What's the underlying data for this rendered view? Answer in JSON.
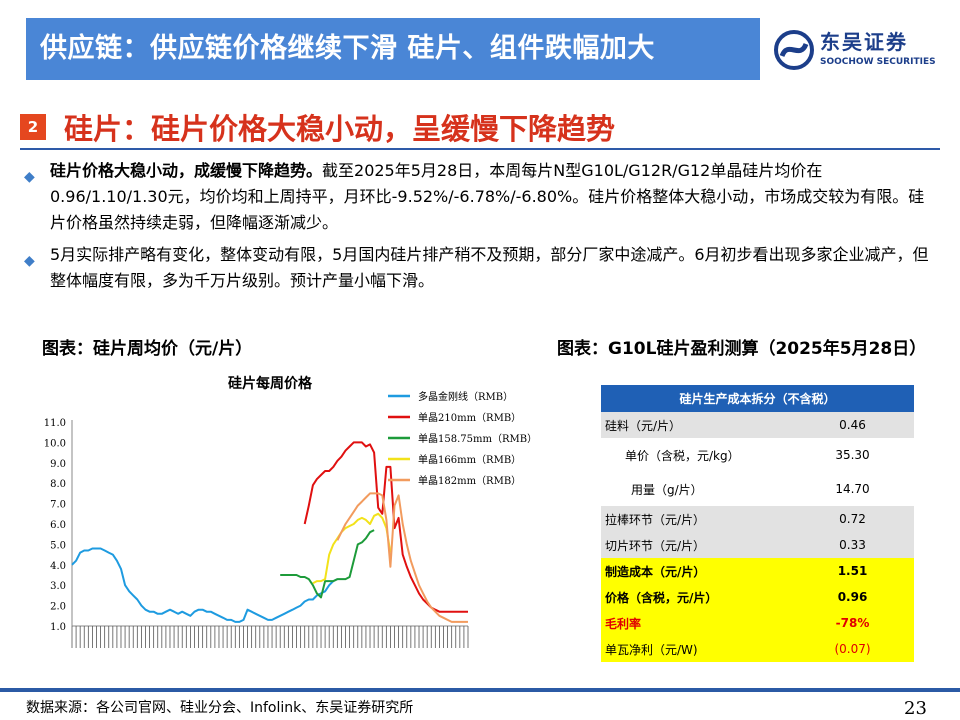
{
  "header": {
    "title": "供应链：供应链价格继续下滑 硅片、组件跌幅加大",
    "logo_cn": "东吴证券",
    "logo_en": "SOOCHOW SECURITIES"
  },
  "section": {
    "number": "2",
    "title": "硅片：硅片价格大稳小动，呈缓慢下降趋势"
  },
  "bullets": [
    {
      "bold": "硅片价格大稳小动，成缓慢下降趋势。",
      "text": "截至2025年5月28日，本周每片N型G10L/G12R/G12单晶硅片均价在0.96/1.10/1.30元，均价均和上周持平，月环比-9.52%/-6.78%/-6.80%。硅片价格整体大稳小动，市场成交较为有限。硅片价格虽然持续走弱，但降幅逐渐减少。"
    },
    {
      "bold": "",
      "text": "5月实际排产略有变化，整体变动有限，5月国内硅片排产稍不及预期，部分厂家中途减产。6月初步看出现多家企业减产，但整体幅度有限，多为千万片级别。预计产量小幅下滑。"
    }
  ],
  "left_caption": "图表：硅片周均价（元/片）",
  "right_caption": "图表：G10L硅片盈利测算（2025年5月28日）",
  "chart_data": {
    "type": "line",
    "title": "硅片每周价格",
    "ylim": [
      1.0,
      11.0
    ],
    "yticks": [
      "1.0",
      "2.0",
      "3.0",
      "4.0",
      "5.0",
      "6.0",
      "7.0",
      "8.0",
      "9.0",
      "10.0",
      "11.0"
    ],
    "x": [
      0,
      2,
      4,
      6,
      8,
      10,
      12,
      14,
      16,
      18,
      20,
      22,
      24,
      26,
      28,
      30,
      32,
      34,
      36,
      38,
      40,
      42,
      44,
      46,
      48,
      50,
      52,
      54,
      56,
      58,
      60,
      62,
      64,
      66,
      68,
      70,
      72,
      74,
      76,
      78,
      80,
      82,
      84,
      86,
      88,
      90,
      92,
      94,
      96,
      98,
      100,
      102,
      104,
      106,
      108,
      110,
      112,
      114,
      116,
      118,
      120,
      122,
      124,
      126,
      128,
      130,
      132,
      134,
      136,
      138,
      140,
      142,
      144,
      146,
      148,
      150,
      152,
      154,
      156,
      158,
      160,
      162,
      164,
      166,
      168,
      170,
      172,
      174,
      176,
      178,
      180,
      182,
      184,
      186,
      188,
      190,
      192,
      194
    ],
    "series": [
      {
        "name": "多晶金刚线（RMB）",
        "color": "#1e9be0",
        "values": [
          4.0,
          4.2,
          4.6,
          4.7,
          4.7,
          4.8,
          4.8,
          4.8,
          4.7,
          4.6,
          4.5,
          4.2,
          3.8,
          3.0,
          2.7,
          2.5,
          2.3,
          2.0,
          1.8,
          1.7,
          1.7,
          1.6,
          1.6,
          1.7,
          1.8,
          1.7,
          1.6,
          1.7,
          1.6,
          1.5,
          1.7,
          1.8,
          1.8,
          1.7,
          1.7,
          1.6,
          1.5,
          1.4,
          1.3,
          1.3,
          1.2,
          1.2,
          1.3,
          1.8,
          1.7,
          1.6,
          1.5,
          1.4,
          1.3,
          1.3,
          1.4,
          1.5,
          1.6,
          1.7,
          1.8,
          1.9,
          2.0,
          2.2,
          2.3,
          2.3,
          2.5,
          2.6,
          2.7,
          3.0,
          3.2,
          3.3,
          null,
          null,
          null,
          null,
          null,
          null,
          null,
          null,
          null,
          null,
          null,
          null,
          null,
          null,
          null,
          null,
          null,
          null,
          null,
          null,
          null,
          null,
          null,
          null,
          null,
          null,
          null,
          null,
          null,
          null,
          null,
          null
        ]
      },
      {
        "name": "单晶210mm（RMB）",
        "color": "#e01010",
        "values": [
          null,
          null,
          null,
          null,
          null,
          null,
          null,
          null,
          null,
          null,
          null,
          null,
          null,
          null,
          null,
          null,
          null,
          null,
          null,
          null,
          null,
          null,
          null,
          null,
          null,
          null,
          null,
          null,
          null,
          null,
          null,
          null,
          null,
          null,
          null,
          null,
          null,
          null,
          null,
          null,
          null,
          null,
          null,
          null,
          null,
          null,
          null,
          null,
          null,
          null,
          null,
          null,
          null,
          null,
          null,
          null,
          null,
          6.0,
          6.9,
          7.9,
          8.2,
          8.4,
          8.6,
          8.6,
          8.8,
          9.1,
          9.3,
          9.6,
          9.8,
          10.0,
          10.0,
          10.0,
          9.8,
          9.9,
          9.5,
          6.8,
          6.5,
          8.8,
          8.8,
          5.8,
          6.3,
          4.5,
          3.9,
          3.4,
          3.0,
          2.6,
          2.3,
          2.1,
          1.9,
          1.8,
          1.7,
          1.7,
          1.7,
          1.7,
          1.7,
          1.7,
          1.7,
          1.7
        ]
      },
      {
        "name": "单晶158.75mm（RMB）",
        "color": "#1d9b3a",
        "values": [
          null,
          null,
          null,
          null,
          null,
          null,
          null,
          null,
          null,
          null,
          null,
          null,
          null,
          null,
          null,
          null,
          null,
          null,
          null,
          null,
          null,
          null,
          null,
          null,
          null,
          null,
          null,
          null,
          null,
          null,
          null,
          null,
          null,
          null,
          null,
          null,
          null,
          null,
          null,
          null,
          null,
          null,
          null,
          null,
          null,
          null,
          null,
          null,
          null,
          null,
          null,
          3.5,
          3.5,
          3.5,
          3.5,
          3.5,
          3.4,
          3.4,
          3.3,
          3.0,
          2.6,
          2.4,
          3.2,
          3.2,
          3.2,
          3.3,
          3.3,
          3.3,
          3.4,
          4.2,
          5.0,
          5.1,
          5.3,
          5.6,
          5.7,
          null,
          null,
          null,
          null,
          null,
          null,
          null,
          null,
          null,
          null,
          null,
          null,
          null,
          null,
          null,
          null,
          null,
          null,
          null,
          null,
          null,
          null,
          null
        ]
      },
      {
        "name": "单晶166mm（RMB）",
        "color": "#f2e21a",
        "values": [
          null,
          null,
          null,
          null,
          null,
          null,
          null,
          null,
          null,
          null,
          null,
          null,
          null,
          null,
          null,
          null,
          null,
          null,
          null,
          null,
          null,
          null,
          null,
          null,
          null,
          null,
          null,
          null,
          null,
          null,
          null,
          null,
          null,
          null,
          null,
          null,
          null,
          null,
          null,
          null,
          null,
          null,
          null,
          null,
          null,
          null,
          null,
          null,
          null,
          null,
          null,
          null,
          null,
          null,
          null,
          null,
          null,
          null,
          null,
          3.1,
          3.2,
          3.2,
          3.3,
          4.5,
          5.0,
          5.3,
          5.6,
          5.8,
          5.9,
          6.0,
          6.2,
          6.3,
          6.2,
          6.0,
          6.4,
          6.5,
          6.3,
          5.8,
          4.6,
          null,
          null,
          null,
          null,
          null,
          null,
          null,
          null,
          null,
          null,
          null,
          null,
          null,
          null,
          null,
          null,
          null,
          null,
          null
        ]
      },
      {
        "name": "单晶182mm（RMB）",
        "color": "#f29b5e",
        "values": [
          null,
          null,
          null,
          null,
          null,
          null,
          null,
          null,
          null,
          null,
          null,
          null,
          null,
          null,
          null,
          null,
          null,
          null,
          null,
          null,
          null,
          null,
          null,
          null,
          null,
          null,
          null,
          null,
          null,
          null,
          null,
          null,
          null,
          null,
          null,
          null,
          null,
          null,
          null,
          null,
          null,
          null,
          null,
          null,
          null,
          null,
          null,
          null,
          null,
          null,
          null,
          null,
          null,
          null,
          null,
          null,
          null,
          null,
          null,
          null,
          null,
          null,
          null,
          null,
          null,
          5.2,
          5.6,
          6.0,
          6.3,
          6.6,
          6.9,
          7.1,
          7.3,
          7.5,
          7.5,
          7.5,
          7.4,
          6.2,
          3.9,
          6.9,
          7.4,
          6.0,
          5.0,
          4.2,
          3.6,
          3.0,
          2.6,
          2.2,
          1.9,
          1.7,
          1.5,
          1.4,
          1.3,
          1.2,
          1.2,
          1.2,
          1.2,
          1.2
        ]
      }
    ]
  },
  "cost_table": {
    "header": "硅片生产成本拆分（不含税）",
    "rows": [
      {
        "label": "硅料（元/片）",
        "value": "0.46",
        "style": "grey"
      },
      {
        "label": "单价（含税，元/kg）",
        "value": "35.30",
        "style": "indent"
      },
      {
        "label": "用量（g/片）",
        "value": "14.70",
        "style": "indent2"
      },
      {
        "label": "拉棒环节（元/片）",
        "value": "0.72",
        "style": "grey"
      },
      {
        "label": "切片环节（元/片）",
        "value": "0.33",
        "style": "grey"
      },
      {
        "label": "制造成本（元/片）",
        "value": "1.51",
        "style": "yellow"
      },
      {
        "label": "价格（含税，元/片）",
        "value": "0.96",
        "style": "yellow"
      },
      {
        "label": "毛利率",
        "value": "-78%",
        "style": "yellow-red"
      },
      {
        "label": "单瓦净利（元/W)",
        "value": "(0.07)",
        "style": "yellow-plain"
      }
    ]
  },
  "footer": {
    "source": "数据来源：各公司官网、硅业分会、Infolink、东吴证券研究所",
    "page": "23"
  }
}
